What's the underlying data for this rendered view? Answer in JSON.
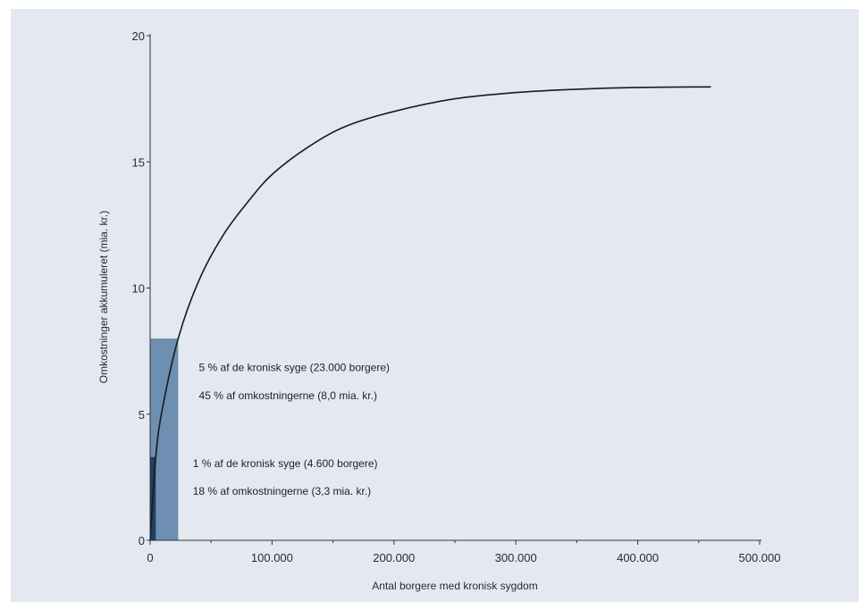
{
  "chart_data": {
    "type": "line",
    "title": "",
    "xlabel": "Antal borgere med kronisk sygdom",
    "ylabel": "Omkostninger akkumuleret (mia. kr.)",
    "xlim": [
      0,
      500000
    ],
    "ylim": [
      0,
      20
    ],
    "x_ticks": [
      0,
      100000,
      200000,
      300000,
      400000,
      500000
    ],
    "x_tick_labels": [
      "0",
      "100.000",
      "200.000",
      "300.000",
      "400.000",
      "500.000"
    ],
    "y_ticks": [
      0,
      5,
      10,
      15,
      20
    ],
    "y_tick_labels": [
      "0",
      "5",
      "10",
      "15",
      "20"
    ],
    "grid": false,
    "series": [
      {
        "color": "#1a1a1a",
        "x": [
          0,
          4600,
          10000,
          23000,
          40000,
          60000,
          80000,
          100000,
          130000,
          160000,
          200000,
          250000,
          300000,
          350000,
          400000,
          460000
        ],
        "y": [
          0,
          3.3,
          5.2,
          8.0,
          10.3,
          12.1,
          13.4,
          14.5,
          15.6,
          16.4,
          17.0,
          17.5,
          17.75,
          17.88,
          17.95,
          17.97
        ]
      }
    ],
    "bars": [
      {
        "x_start": 0,
        "x_end": 23000,
        "height": 8.0,
        "color": "#6e8fb1"
      },
      {
        "x_start": 0,
        "x_end": 4600,
        "height": 3.3,
        "color": "#1f3f66"
      }
    ],
    "annotations": [
      {
        "text": "5 % af de kronisk syge (23.000 borgere)",
        "x": 40000,
        "y": 6.7
      },
      {
        "text": "45 % af omkostningerne (8,0 mia. kr.)",
        "x": 40000,
        "y": 5.6
      },
      {
        "text": "1 % af de kronisk syge (4.600 borgere)",
        "x": 35000,
        "y": 2.9
      },
      {
        "text": "18 % af omkostningerne (3,3 mia. kr.)",
        "x": 35000,
        "y": 1.8
      }
    ]
  }
}
